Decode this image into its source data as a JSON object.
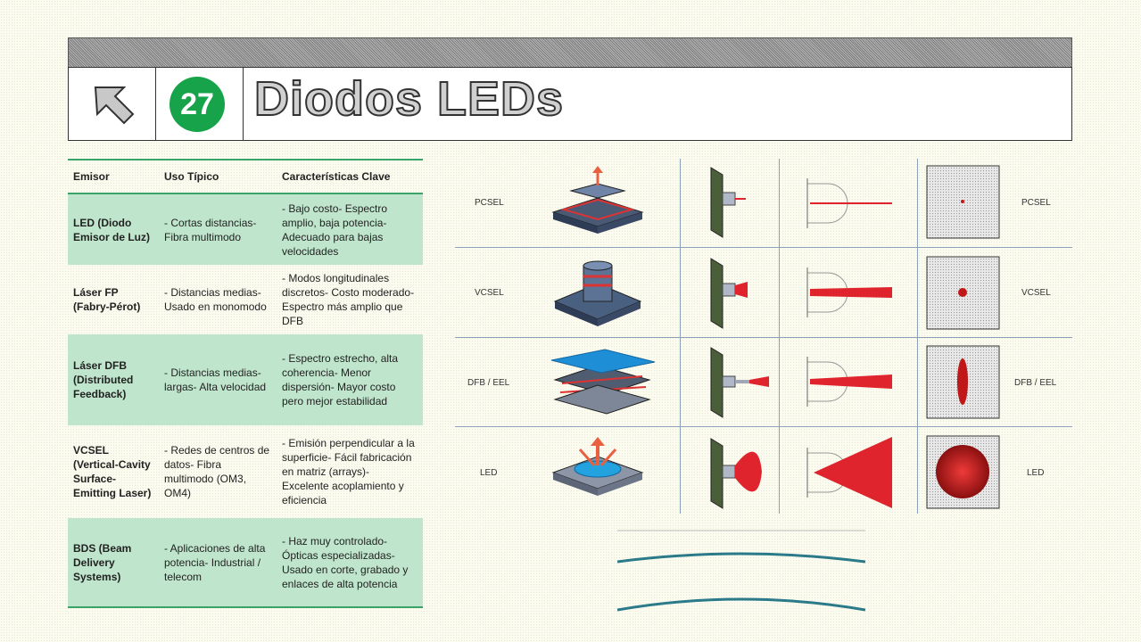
{
  "header": {
    "number": "27",
    "title": "Diodos LEDs",
    "icon": "arrow-up-left-icon",
    "badge_color": "#16a34a"
  },
  "table": {
    "headers": [
      "Emisor",
      "Uso Típico",
      "Características Clave"
    ],
    "rows": [
      {
        "emisor": "LED (Diodo Emisor de Luz)",
        "uso": "- Cortas distancias- Fibra multimodo",
        "caract": "- Bajo costo- Espectro amplio, baja potencia- Adecuado para bajas velocidades"
      },
      {
        "emisor": "Láser FP (Fabry-Pérot)",
        "uso": "- Distancias medias- Usado en monomodo",
        "caract": "- Modos longitudinales discretos- Costo moderado- Espectro más amplio que DFB"
      },
      {
        "emisor": "Láser DFB (Distributed Feedback)",
        "uso": "- Distancias medias-largas- Alta velocidad",
        "caract": "- Espectro estrecho, alta coherencia- Menor dispersión- Mayor costo pero mejor estabilidad"
      },
      {
        "emisor": "VCSEL (Vertical-Cavity Surface-Emitting Laser)",
        "uso": "- Redes de centros de datos- Fibra multimodo (OM3, OM4)",
        "caract": "- Emisión perpendicular a la superficie- Fácil fabricación en matriz (arrays)- Excelente acoplamiento y eficiencia"
      },
      {
        "emisor": "BDS (Beam Delivery Systems)",
        "uso": "- Aplicaciones de alta potencia- Industrial / telecom",
        "caract": "- Haz muy controlado- Ópticas especializadas- Usado en corte, grabado y enlaces de alta potencia"
      }
    ],
    "accent": "#3aa36a",
    "highlight": "#bfe6cc"
  },
  "diagram": {
    "rows": [
      "PCSEL",
      "VCSEL",
      "DFB / EEL",
      "LED"
    ],
    "beam_color": "#e0242e"
  }
}
